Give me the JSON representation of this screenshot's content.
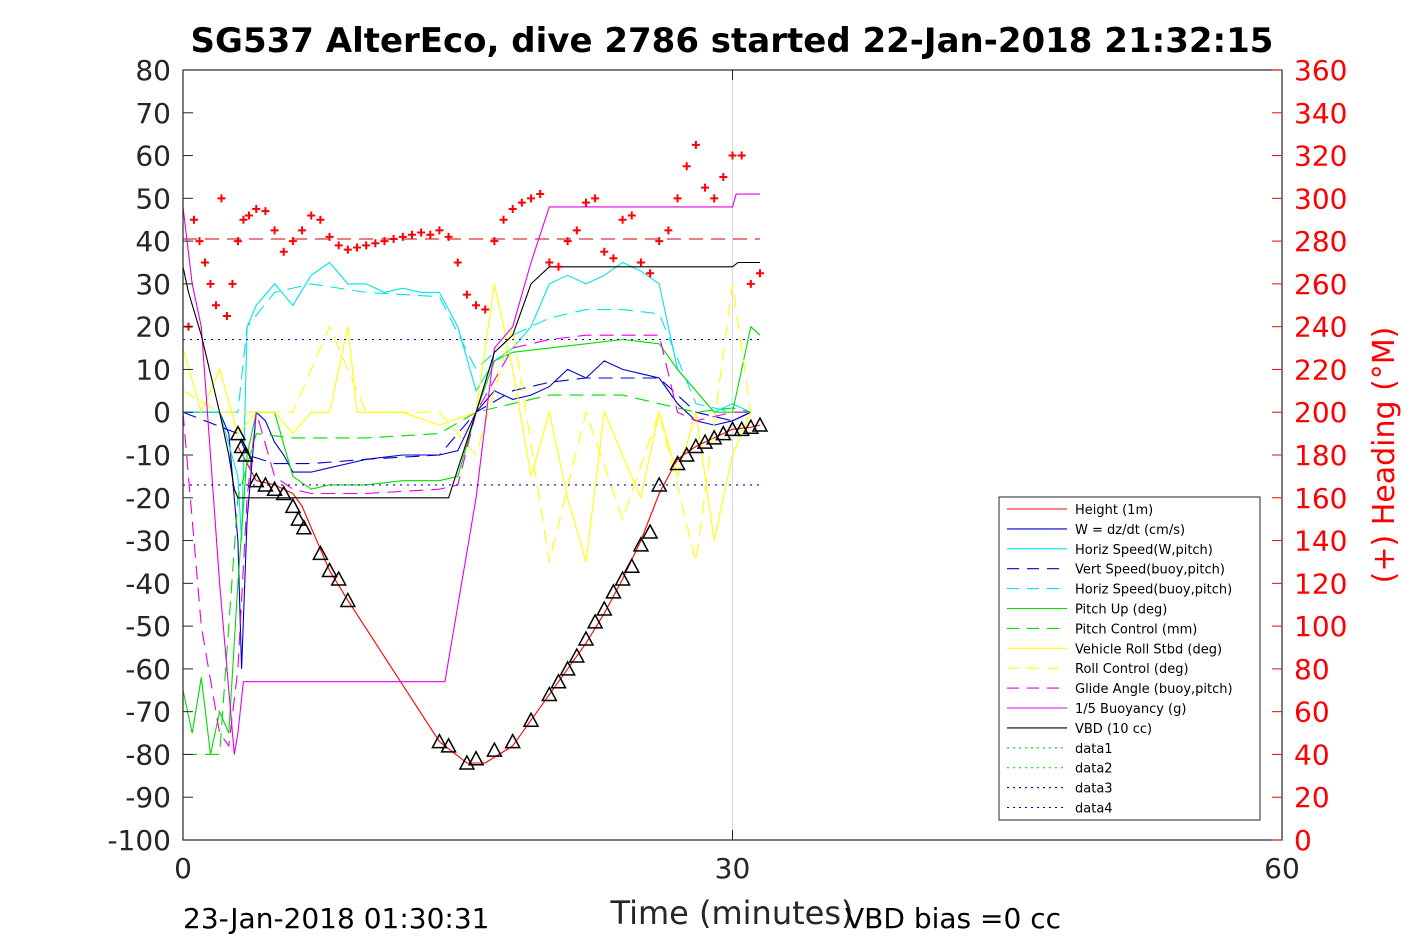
{
  "chart_data": {
    "type": "line",
    "title": "SG537 AlterEco, dive 2786 started 22-Jan-2018 21:32:15",
    "xlabel": "Time (minutes)",
    "ylabel_right": "(+) Heading (°M)",
    "xlim": [
      0,
      60
    ],
    "ylim": [
      -100,
      80
    ],
    "ylim_right": [
      0,
      360
    ],
    "x_ticks": [
      "0",
      "30",
      "60"
    ],
    "y_ticks": [
      "80",
      "70",
      "60",
      "50",
      "40",
      "30",
      "20",
      "10",
      "0",
      "-10",
      "-20",
      "-30",
      "-40",
      "-50",
      "-60",
      "-70",
      "-80",
      "-90",
      "-100"
    ],
    "y_ticks_right": [
      "360",
      "340",
      "320",
      "300",
      "280",
      "260",
      "240",
      "220",
      "200",
      "180",
      "160",
      "140",
      "120",
      "100",
      "80",
      "60",
      "40",
      "20",
      "0"
    ],
    "grid": "x-only",
    "legend_position": "bottom-right",
    "footer_left": "23-Jan-2018 01:30:31",
    "footer_right": "VBD bias =0 cc",
    "series": [
      {
        "name": "Height (1m)",
        "color": "#ff0000",
        "style": "solid",
        "x": [
          3,
          4,
          5,
          6,
          6.5,
          7,
          8,
          9,
          14,
          15.5,
          16.5,
          18,
          19,
          20,
          21,
          22,
          23,
          24,
          25,
          26,
          27,
          28,
          29,
          30,
          31,
          31.5
        ],
        "y": [
          -8,
          -16,
          -17,
          -19,
          -22,
          -27,
          -37,
          -44,
          -77,
          -82,
          -82,
          -78,
          -72,
          -66,
          -60,
          -54,
          -47,
          -39,
          -30,
          -19,
          -11,
          -8,
          -6,
          -4,
          -3.5,
          -3
        ]
      },
      {
        "name": "W = dz/dt (cm/s)",
        "color": "#0000cc",
        "style": "solid",
        "x": [
          0,
          2,
          2.5,
          3,
          3.2,
          3.5,
          4,
          4.5,
          5,
          5.5,
          6,
          7,
          8,
          9,
          10,
          12,
          14,
          15,
          16,
          17,
          18,
          19,
          20,
          21,
          22,
          23,
          24,
          25,
          26,
          27,
          28,
          29,
          30,
          31
        ],
        "y": [
          0,
          0,
          -5,
          -30,
          -60,
          -25,
          0,
          -2,
          -7,
          -10,
          -14,
          -14,
          -13,
          -12,
          -11,
          -10,
          -10,
          -9,
          0,
          5,
          3,
          4,
          6,
          10,
          8,
          12,
          10,
          9,
          8,
          2,
          -2,
          -3,
          -2,
          0
        ]
      },
      {
        "name": "Horiz Speed(W,pitch)",
        "color": "#00e5e5",
        "style": "solid",
        "x": [
          0,
          2,
          3,
          3.2,
          3.5,
          4,
          5,
          6,
          7,
          8,
          9,
          10,
          11,
          12,
          13,
          14,
          15,
          16,
          17,
          18,
          19,
          20,
          21,
          22,
          23,
          24,
          25,
          26,
          27,
          28,
          29,
          30,
          31
        ],
        "y": [
          0,
          0,
          -15,
          -30,
          20,
          25,
          30,
          25,
          32,
          35,
          30,
          30,
          28,
          29,
          28,
          28,
          20,
          5,
          12,
          15,
          20,
          30,
          32,
          30,
          32,
          35,
          33,
          30,
          10,
          5,
          0,
          2,
          0
        ]
      },
      {
        "name": "Vert Speed(buoy,pitch)",
        "color": "#0000cc",
        "style": "dashed",
        "x": [
          0,
          3,
          3.5,
          5,
          7,
          10,
          14,
          16,
          18,
          20,
          22,
          24,
          26,
          28,
          30,
          31
        ],
        "y": [
          0,
          -5,
          -10,
          -12,
          -12,
          -11,
          -10,
          0,
          5,
          7,
          8,
          8,
          8,
          0,
          -2,
          0
        ]
      },
      {
        "name": "Horiz Speed(buoy,pitch)",
        "color": "#00e5e5",
        "style": "dashed",
        "x": [
          0,
          3,
          3.5,
          5,
          7,
          10,
          14,
          16,
          18,
          20,
          22,
          24,
          26,
          28,
          30,
          31
        ],
        "y": [
          0,
          0,
          20,
          28,
          30,
          28,
          27,
          10,
          18,
          22,
          24,
          24,
          23,
          2,
          0,
          0
        ]
      },
      {
        "name": "Pitch Up (deg)",
        "color": "#00dd00",
        "style": "solid",
        "x": [
          0,
          0.5,
          1,
          1.5,
          2,
          2.5,
          3,
          3.5,
          4,
          5,
          6,
          7,
          8,
          10,
          12,
          14,
          15,
          16,
          17,
          18,
          20,
          22,
          24,
          26,
          27,
          28,
          29,
          30,
          31,
          31.5
        ],
        "y": [
          -65,
          -75,
          -62,
          -80,
          -70,
          -75,
          -40,
          -10,
          0,
          0,
          -15,
          -18,
          -17,
          -17,
          -16,
          -16,
          -15,
          0,
          12,
          14,
          15,
          16,
          17,
          16,
          10,
          5,
          0,
          0,
          20,
          18
        ]
      },
      {
        "name": "Pitch Control (mm)",
        "color": "#00dd00",
        "style": "dashed",
        "x": [
          0,
          2,
          3,
          4,
          6,
          8,
          10,
          14,
          16,
          18,
          20,
          24,
          28,
          30,
          31
        ],
        "y": [
          -80,
          -80,
          -20,
          -5,
          -6,
          -6,
          -6,
          -5,
          0,
          2,
          4,
          4,
          0,
          1,
          0
        ]
      },
      {
        "name": "Vehicle Roll Stbd (deg)",
        "color": "#ffff00",
        "style": "solid",
        "x": [
          0,
          1,
          2,
          3,
          4,
          5,
          6,
          7,
          8,
          9,
          9.5,
          10,
          12,
          14,
          16,
          17,
          18,
          19,
          20,
          21,
          22,
          23,
          24,
          25,
          26,
          27,
          28,
          29,
          30,
          31
        ],
        "y": [
          15,
          0,
          10,
          -5,
          0,
          0,
          -5,
          0,
          0,
          20,
          0,
          0,
          0,
          -3,
          0,
          30,
          10,
          -15,
          0,
          -20,
          -35,
          0,
          -10,
          -20,
          0,
          -15,
          0,
          -30,
          -10,
          0
        ]
      },
      {
        "name": "Roll Control (deg)",
        "color": "#ffff00",
        "style": "dashed",
        "x": [
          0,
          2,
          4,
          6,
          8,
          10,
          14,
          16,
          18,
          20,
          22,
          24,
          26,
          28,
          30,
          31
        ],
        "y": [
          5,
          0,
          0,
          0,
          20,
          0,
          0,
          -10,
          20,
          -35,
          0,
          -25,
          0,
          -35,
          30,
          0
        ]
      },
      {
        "name": "Glide Angle (buoy,pitch)",
        "color": "#e600e6",
        "style": "dashed",
        "x": [
          0,
          1,
          2,
          2.5,
          3,
          3.5,
          4,
          5,
          6,
          7,
          8,
          10,
          14,
          15,
          16,
          18,
          20,
          22,
          24,
          26,
          27,
          28,
          30,
          31
        ],
        "y": [
          0,
          -50,
          -75,
          -78,
          -60,
          -20,
          0,
          -15,
          -18,
          -19,
          -19,
          -19,
          -18,
          -17,
          0,
          15,
          17,
          18,
          18,
          18,
          0,
          -2,
          0,
          0
        ]
      },
      {
        "name": "1/5 Buoyancy (g)",
        "color": "#e600e6",
        "style": "solid",
        "x": [
          0,
          0.5,
          1,
          2,
          2.5,
          2.8,
          3,
          3.3,
          5,
          10,
          14,
          14.3,
          16,
          17,
          18,
          19,
          20,
          22,
          26,
          28,
          30,
          30.2,
          31,
          31.5
        ],
        "y": [
          48,
          30,
          20,
          -40,
          -65,
          -80,
          -75,
          -63,
          -63,
          -63,
          -63,
          -63,
          -20,
          15,
          20,
          35,
          48,
          48,
          48,
          48,
          48,
          51,
          51,
          51
        ]
      },
      {
        "name": "VBD (10 cc)",
        "color": "#000000",
        "style": "solid",
        "x": [
          0,
          0.3,
          1,
          2,
          2.5,
          2.8,
          3,
          5,
          10,
          14,
          14.5,
          16,
          17,
          18,
          19,
          20,
          21,
          24,
          26,
          27,
          28,
          30,
          30.3,
          31,
          31.5
        ],
        "y": [
          34,
          28,
          18,
          0,
          -10,
          -18,
          -20,
          -20,
          -20,
          -20,
          -20,
          0,
          14,
          18,
          30,
          34,
          34,
          34,
          34,
          34,
          34,
          34,
          35,
          35,
          35
        ]
      },
      {
        "name": "data1",
        "color": "#00dd00",
        "style": "dotted",
        "x": [],
        "y": []
      },
      {
        "name": "data2",
        "color": "#00dd00",
        "style": "dotted",
        "x": [],
        "y": []
      },
      {
        "name": "data3",
        "color": "#0000cc",
        "style": "dotted",
        "x": [
          0,
          31.5
        ],
        "y": [
          17,
          17
        ]
      },
      {
        "name": "data4",
        "color": "#0000cc",
        "style": "dotted",
        "x": [
          0,
          31.5
        ],
        "y": [
          -17,
          -17
        ]
      }
    ],
    "heading_target_line": {
      "color": "#cc0000",
      "style": "dashed",
      "heading": 281,
      "x": [
        0,
        31.5
      ]
    },
    "heading_points": {
      "color": "#ff0000",
      "marker": "+",
      "x": [
        0.3,
        0.6,
        0.9,
        1.2,
        1.5,
        1.8,
        2.1,
        2.4,
        2.7,
        3.0,
        3.3,
        3.6,
        4.0,
        4.5,
        5.0,
        5.5,
        6.0,
        6.5,
        7.0,
        7.5,
        8.0,
        8.5,
        9.0,
        9.5,
        10.0,
        10.5,
        11.0,
        11.5,
        12.0,
        12.5,
        13.0,
        13.5,
        14.0,
        14.5,
        15.0,
        15.5,
        16.0,
        16.5,
        17.0,
        17.5,
        18.0,
        18.5,
        19.0,
        19.5,
        20.0,
        20.5,
        21.0,
        21.5,
        22.0,
        22.5,
        23.0,
        23.5,
        24.0,
        24.5,
        25.0,
        25.5,
        26.0,
        26.5,
        27.0,
        27.5,
        28.0,
        28.5,
        29.0,
        29.5,
        30.0,
        30.5,
        31.0,
        31.5
      ],
      "heading": [
        240,
        290,
        280,
        270,
        260,
        250,
        300,
        245,
        260,
        280,
        290,
        292,
        295,
        294,
        285,
        275,
        280,
        285,
        292,
        290,
        282,
        278,
        276,
        277,
        278,
        279,
        280,
        281,
        282,
        283,
        284,
        283,
        285,
        282,
        270,
        255,
        250,
        248,
        280,
        290,
        295,
        298,
        300,
        302,
        270,
        268,
        280,
        285,
        298,
        300,
        275,
        272,
        290,
        292,
        270,
        265,
        280,
        285,
        300,
        315,
        325,
        305,
        300,
        310,
        320,
        320,
        260,
        265
      ]
    },
    "depth_points": {
      "color": "#000000",
      "marker": "triangle",
      "x": [
        3.0,
        3.2,
        3.4,
        4.0,
        4.5,
        5.0,
        5.5,
        6.0,
        6.3,
        6.6,
        7.5,
        8.0,
        8.5,
        9.0,
        14.0,
        14.5,
        15.5,
        16.0,
        17.0,
        18.0,
        19.0,
        20.0,
        20.5,
        21.0,
        21.5,
        22.0,
        22.5,
        23.0,
        23.5,
        24.0,
        24.5,
        25.0,
        25.5,
        26.0,
        27.0,
        27.5,
        28.0,
        28.5,
        29.0,
        29.5,
        30.0,
        30.5,
        31.0,
        31.5
      ],
      "y": [
        -5,
        -8,
        -10,
        -16,
        -17,
        -18,
        -19,
        -22,
        -25,
        -27,
        -33,
        -37,
        -39,
        -44,
        -77,
        -78,
        -82,
        -81,
        -79,
        -77,
        -72,
        -66,
        -63,
        -60,
        -57,
        -53,
        -49,
        -46,
        -42,
        -39,
        -36,
        -31,
        -28,
        -17,
        -12,
        -10,
        -8,
        -7,
        -6,
        -5,
        -4,
        -4,
        -3.5,
        -3
      ]
    }
  }
}
